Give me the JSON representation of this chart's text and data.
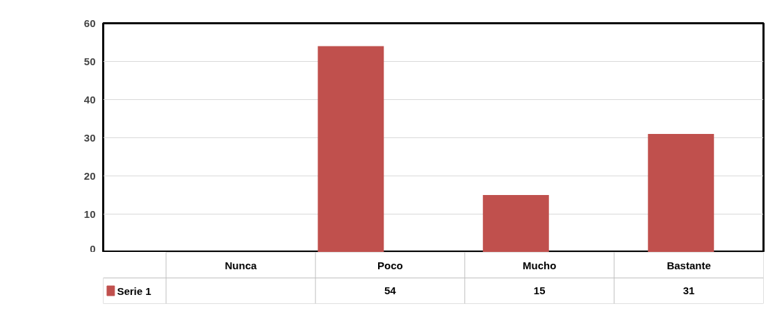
{
  "chart_data": {
    "type": "bar",
    "categories": [
      "Nunca",
      "Poco",
      "Mucho",
      "Bastante"
    ],
    "series": [
      {
        "name": "Serie 1",
        "color": "#c0504d",
        "values": [
          null,
          54,
          15,
          31
        ],
        "value_labels": [
          null,
          "54",
          "15",
          "31"
        ]
      }
    ],
    "ylim": [
      0,
      60
    ],
    "yticks": [
      0,
      10,
      20,
      30,
      40,
      50,
      60
    ],
    "grid": "y",
    "legend": "bottom left"
  }
}
